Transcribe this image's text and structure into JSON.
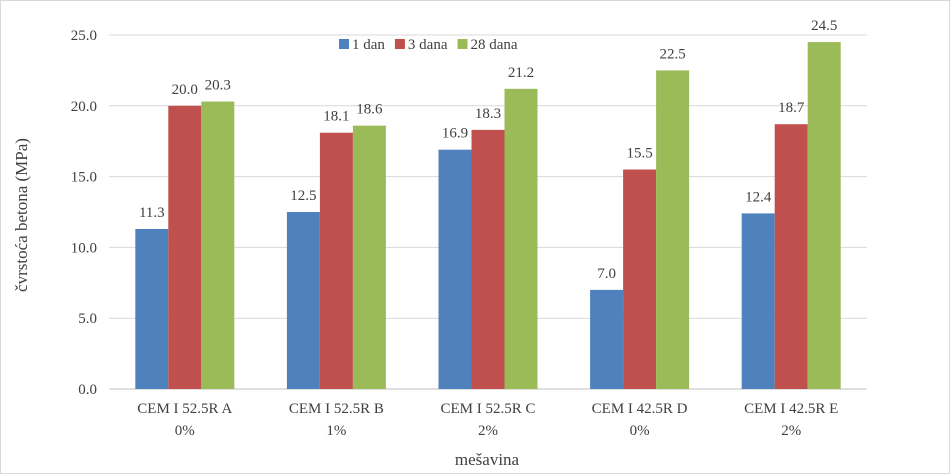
{
  "chart_data": {
    "type": "bar",
    "title": "",
    "xlabel": "mešavina",
    "ylabel": "čvrstoća betona (MPa)",
    "ylim": [
      0,
      25
    ],
    "yticks": [
      "0.0",
      "5.0",
      "10.0",
      "15.0",
      "20.0",
      "25.0"
    ],
    "categories": [
      [
        "CEM I 52.5R A",
        "0%"
      ],
      [
        "CEM I 52.5R B",
        "1%"
      ],
      [
        "CEM I 52.5R C",
        "2%"
      ],
      [
        "CEM I 42.5R D",
        "0%"
      ],
      [
        "CEM I 42.5R E",
        "2%"
      ]
    ],
    "series": [
      {
        "name": "1 dan",
        "color": "#4f81bd",
        "values": [
          11.3,
          12.5,
          16.9,
          7.0,
          12.4
        ]
      },
      {
        "name": "3 dana",
        "color": "#c0504d",
        "values": [
          20.0,
          18.1,
          18.3,
          15.5,
          18.7
        ]
      },
      {
        "name": "28 dana",
        "color": "#9bbb59",
        "values": [
          20.3,
          18.6,
          21.2,
          22.5,
          24.5
        ]
      }
    ],
    "legend_position": "top",
    "grid": true
  }
}
